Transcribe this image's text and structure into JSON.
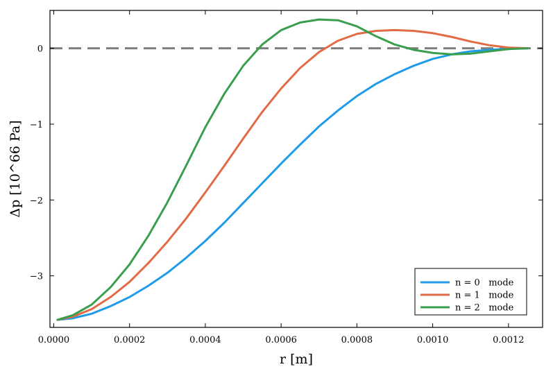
{
  "chart_data": {
    "type": "line",
    "xlabel": "r [m]",
    "ylabel": "Δp [10^66 Pa]",
    "xlim": [
      -1e-05,
      0.00129
    ],
    "ylim": [
      -3.68,
      0.5
    ],
    "x_ticks": [
      0.0,
      0.0002,
      0.0004,
      0.0006,
      0.0008,
      0.001,
      0.0012
    ],
    "x_tick_labels": [
      "0.0000",
      "0.0002",
      "0.0004",
      "0.0006",
      "0.0008",
      "0.0010",
      "0.0012"
    ],
    "y_ticks": [
      0,
      -1,
      -2,
      -3
    ],
    "y_tick_labels": [
      "0",
      "−1",
      "−2",
      "−3"
    ],
    "grid": false,
    "legend_position": "bottom-right",
    "reference_line": {
      "y": 0,
      "style": "dashed",
      "color": "#7f7f7f"
    },
    "series": [
      {
        "name": "n = 0   mode",
        "color": "#1f9be8",
        "x": [
          1e-05,
          5e-05,
          0.0001,
          0.00015,
          0.0002,
          0.00025,
          0.0003,
          0.00035,
          0.0004,
          0.00045,
          0.0005,
          0.00055,
          0.0006,
          0.00065,
          0.0007,
          0.00075,
          0.0008,
          0.00085,
          0.0009,
          0.00095,
          0.001,
          0.00105,
          0.0011,
          0.00115,
          0.0012,
          0.00125
        ],
        "y": [
          -3.58,
          -3.56,
          -3.5,
          -3.4,
          -3.28,
          -3.13,
          -2.96,
          -2.76,
          -2.54,
          -2.3,
          -2.04,
          -1.78,
          -1.52,
          -1.27,
          -1.03,
          -0.82,
          -0.63,
          -0.47,
          -0.34,
          -0.23,
          -0.14,
          -0.08,
          -0.04,
          -0.02,
          -0.005,
          0.0
        ]
      },
      {
        "name": "n = 1   mode",
        "color": "#e26a45",
        "x": [
          1e-05,
          5e-05,
          0.0001,
          0.00015,
          0.0002,
          0.00025,
          0.0003,
          0.00035,
          0.0004,
          0.00045,
          0.0005,
          0.00055,
          0.0006,
          0.00065,
          0.0007,
          0.00075,
          0.0008,
          0.00085,
          0.0009,
          0.00095,
          0.001,
          0.00105,
          0.0011,
          0.00115,
          0.0012,
          0.00125
        ],
        "y": [
          -3.58,
          -3.54,
          -3.44,
          -3.28,
          -3.08,
          -2.83,
          -2.55,
          -2.24,
          -1.9,
          -1.55,
          -1.19,
          -0.84,
          -0.53,
          -0.26,
          -0.05,
          0.1,
          0.19,
          0.23,
          0.24,
          0.23,
          0.2,
          0.15,
          0.09,
          0.04,
          0.01,
          0.0
        ]
      },
      {
        "name": "n = 2   mode",
        "color": "#3a9e4f",
        "x": [
          1e-05,
          5e-05,
          0.0001,
          0.00015,
          0.0002,
          0.00025,
          0.0003,
          0.00035,
          0.0004,
          0.00045,
          0.0005,
          0.00055,
          0.0006,
          0.00065,
          0.0007,
          0.00075,
          0.0008,
          0.00085,
          0.0009,
          0.00095,
          0.001,
          0.00105,
          0.0011,
          0.00115,
          0.0012,
          0.00125
        ],
        "y": [
          -3.58,
          -3.52,
          -3.38,
          -3.15,
          -2.85,
          -2.47,
          -2.03,
          -1.54,
          -1.04,
          -0.6,
          -0.23,
          0.05,
          0.24,
          0.34,
          0.38,
          0.37,
          0.29,
          0.16,
          0.05,
          -0.02,
          -0.06,
          -0.08,
          -0.07,
          -0.04,
          -0.01,
          0.0
        ]
      }
    ]
  }
}
